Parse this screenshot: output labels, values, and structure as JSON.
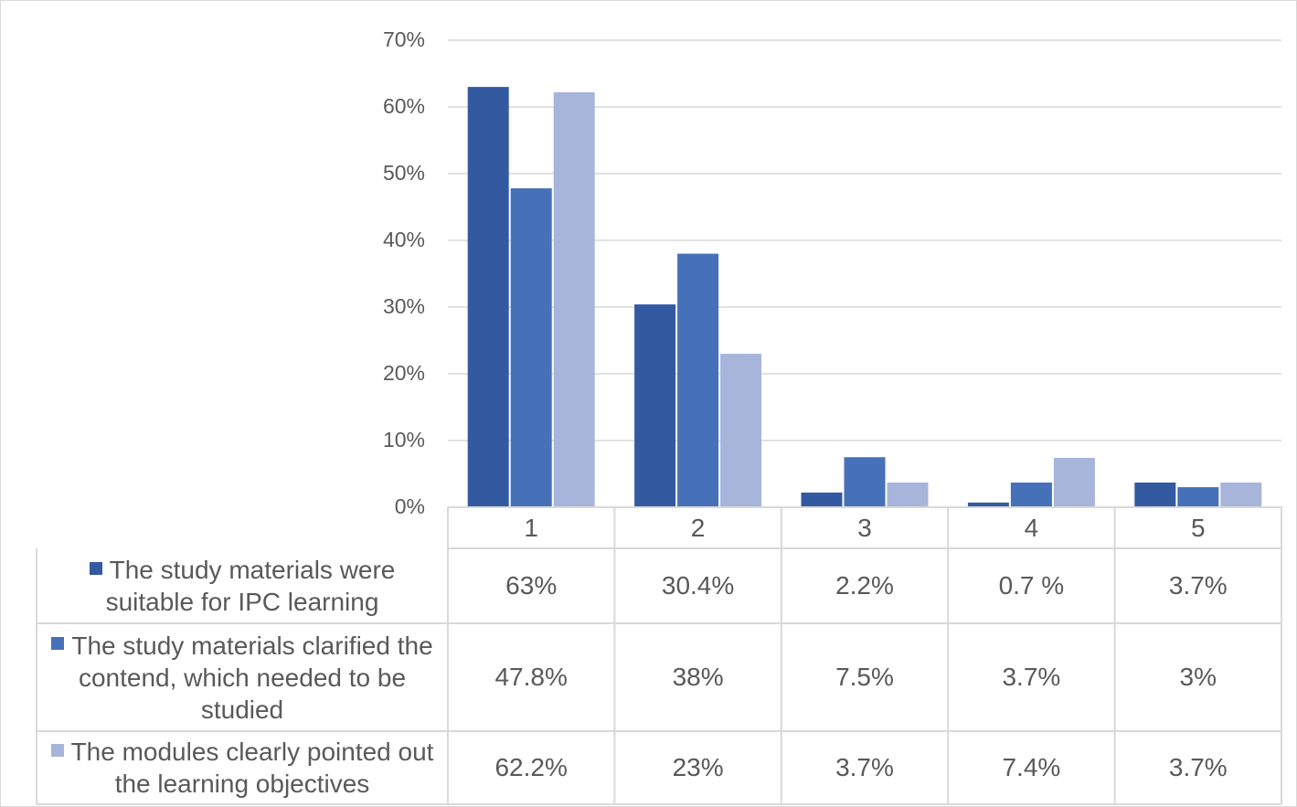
{
  "chart_data": {
    "type": "bar",
    "title": "",
    "xlabel": "",
    "ylabel": "",
    "categories": [
      "1",
      "2",
      "3",
      "4",
      "5"
    ],
    "ylim": [
      0,
      70
    ],
    "yticks": [
      "0%",
      "10%",
      "20%",
      "30%",
      "40%",
      "50%",
      "60%",
      "70%"
    ],
    "grid": true,
    "legend": "data-table",
    "series": [
      {
        "name": "The study materials were suitable for IPC learning",
        "color": "#335aa1",
        "values": [
          63,
          30.4,
          2.2,
          0.7,
          3.7
        ],
        "labels": [
          "63%",
          "30.4%",
          "2.2%",
          "0.7 %",
          "3.7%"
        ]
      },
      {
        "name": "The study materials clarified the contend, which needed to be studied",
        "color": "#4671b8",
        "values": [
          47.8,
          38,
          7.5,
          3.7,
          3
        ],
        "labels": [
          "47.8%",
          "38%",
          "7.5%",
          "3.7%",
          "3%"
        ]
      },
      {
        "name": "The modules clearly pointed out the learning objectives",
        "color": "#a8b5db",
        "values": [
          62.2,
          23,
          3.7,
          7.4,
          3.7
        ],
        "labels": [
          "62.2%",
          "23%",
          "3.7%",
          "7.4%",
          "3.7%"
        ]
      }
    ]
  }
}
